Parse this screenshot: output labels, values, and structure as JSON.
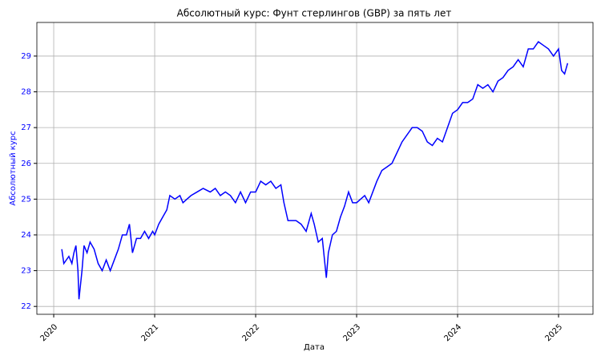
{
  "chart_data": {
    "type": "line",
    "title": "Абсолютный курс: Фунт стерлингов (GBP) за пять лет",
    "x_label": "Дата",
    "y_label": "Абсолютный курс",
    "grid": true,
    "tick_color": "#0000ff",
    "xlim": [
      2019.833,
      2025.341
    ],
    "xticks": [
      2020,
      2021,
      2022,
      2023,
      2024,
      2025
    ],
    "ylim": [
      21.78,
      29.94
    ],
    "yticks": [
      22,
      23,
      24,
      25,
      26,
      27,
      28,
      29
    ],
    "x": [
      2020.08,
      2020.1,
      2020.15,
      2020.18,
      2020.2,
      2020.22,
      2020.24,
      2020.25,
      2020.28,
      2020.3,
      2020.33,
      2020.36,
      2020.4,
      2020.44,
      2020.48,
      2020.52,
      2020.56,
      2020.6,
      2020.64,
      2020.68,
      2020.72,
      2020.75,
      2020.78,
      2020.82,
      2020.86,
      2020.9,
      2020.94,
      2020.98,
      2021.0,
      2021.04,
      2021.08,
      2021.12,
      2021.15,
      2021.2,
      2021.25,
      2021.28,
      2021.32,
      2021.36,
      2021.42,
      2021.48,
      2021.55,
      2021.6,
      2021.65,
      2021.7,
      2021.75,
      2021.8,
      2021.85,
      2021.9,
      2021.95,
      2022.0,
      2022.05,
      2022.1,
      2022.15,
      2022.2,
      2022.25,
      2022.28,
      2022.32,
      2022.36,
      2022.4,
      2022.45,
      2022.5,
      2022.55,
      2022.58,
      2022.62,
      2022.66,
      2022.7,
      2022.72,
      2022.76,
      2022.8,
      2022.84,
      2022.88,
      2022.92,
      2022.96,
      2023.0,
      2023.04,
      2023.08,
      2023.12,
      2023.16,
      2023.2,
      2023.25,
      2023.3,
      2023.35,
      2023.4,
      2023.45,
      2023.5,
      2023.55,
      2023.6,
      2023.65,
      2023.7,
      2023.75,
      2023.8,
      2023.85,
      2023.9,
      2023.95,
      2024.0,
      2024.05,
      2024.1,
      2024.15,
      2024.2,
      2024.25,
      2024.3,
      2024.35,
      2024.4,
      2024.45,
      2024.5,
      2024.55,
      2024.6,
      2024.65,
      2024.7,
      2024.75,
      2024.8,
      2024.85,
      2024.9,
      2024.95,
      2025.0,
      2025.03,
      2025.06,
      2025.09
    ],
    "series": [
      {
        "color": "#0000ff",
        "values": [
          23.6,
          23.2,
          23.4,
          23.2,
          23.5,
          23.7,
          23.0,
          22.2,
          23.0,
          23.7,
          23.5,
          23.8,
          23.6,
          23.2,
          23.0,
          23.3,
          23.0,
          23.3,
          23.6,
          24.0,
          24.0,
          24.3,
          23.5,
          23.9,
          23.9,
          24.1,
          23.9,
          24.1,
          24.0,
          24.3,
          24.5,
          24.7,
          25.1,
          25.0,
          25.1,
          24.9,
          25.0,
          25.1,
          25.2,
          25.3,
          25.2,
          25.3,
          25.1,
          25.2,
          25.1,
          24.9,
          25.2,
          24.9,
          25.2,
          25.2,
          25.5,
          25.4,
          25.5,
          25.3,
          25.4,
          24.9,
          24.4,
          24.4,
          24.4,
          24.3,
          24.1,
          24.6,
          24.3,
          23.8,
          23.9,
          22.8,
          23.5,
          24.0,
          24.1,
          24.5,
          24.8,
          25.2,
          24.9,
          24.9,
          25.0,
          25.1,
          24.9,
          25.2,
          25.5,
          25.8,
          25.9,
          26.0,
          26.3,
          26.6,
          26.8,
          27.0,
          27.0,
          26.9,
          26.6,
          26.5,
          26.7,
          26.6,
          27.0,
          27.4,
          27.5,
          27.7,
          27.7,
          27.8,
          28.2,
          28.1,
          28.2,
          28.0,
          28.3,
          28.4,
          28.6,
          28.7,
          28.9,
          28.7,
          29.2,
          29.2,
          29.4,
          29.3,
          29.2,
          29.0,
          29.2,
          28.6,
          28.5,
          28.8
        ]
      }
    ]
  }
}
